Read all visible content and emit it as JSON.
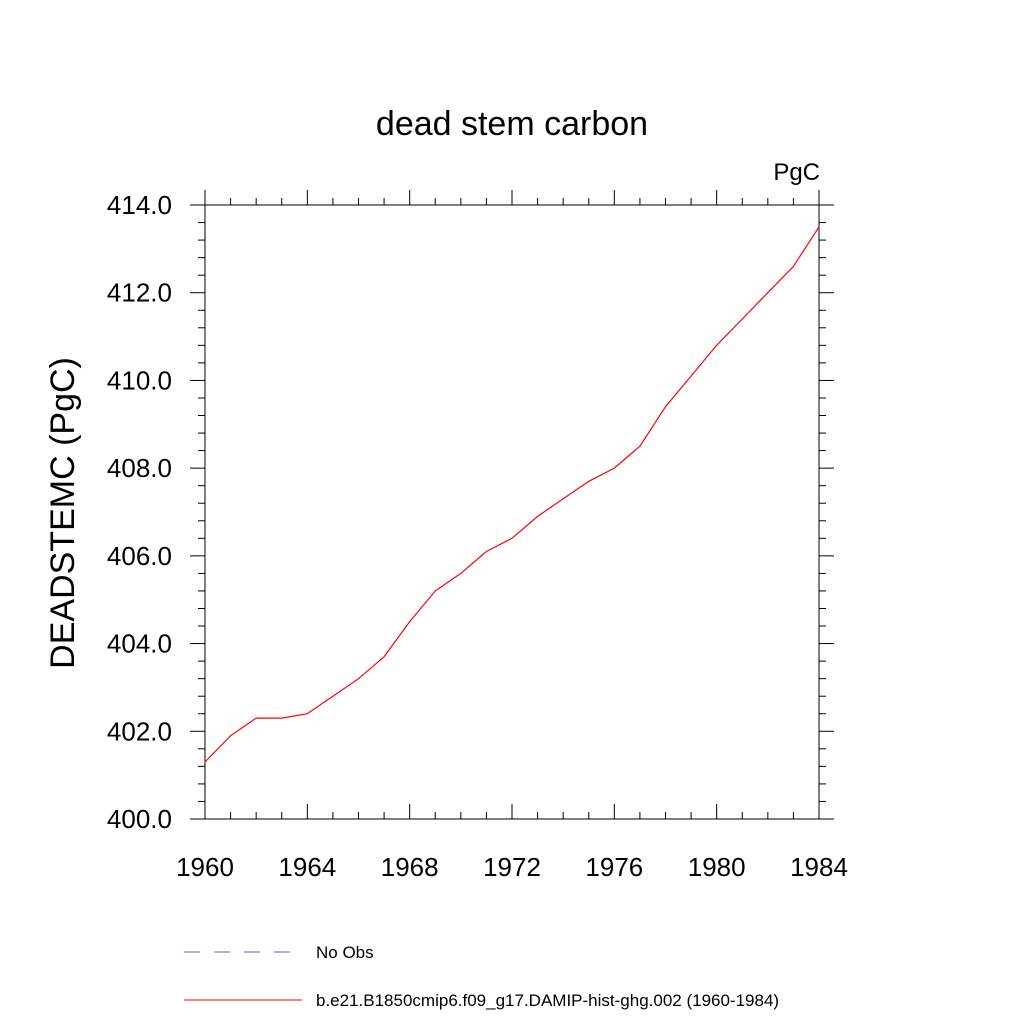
{
  "chart_data": {
    "type": "line",
    "title": "dead stem carbon",
    "units_label": "PgC",
    "ylabel": "DEADSTEMC  (PgC)",
    "xlabel": "",
    "xlim": [
      1960,
      1984
    ],
    "ylim": [
      400.0,
      414.0
    ],
    "x_ticks": [
      "1960",
      "1964",
      "1968",
      "1972",
      "1976",
      "1980",
      "1984"
    ],
    "y_ticks": [
      "400.0",
      "402.0",
      "404.0",
      "406.0",
      "408.0",
      "410.0",
      "412.0",
      "414.0"
    ],
    "series": [
      {
        "name": "b.e21.B1850cmip6.f09_g17.DAMIP-hist-ghg.002 (1960-1984)",
        "color": "#ff0000",
        "style": "solid",
        "x": [
          1960,
          1961,
          1962,
          1963,
          1964,
          1965,
          1966,
          1967,
          1968,
          1969,
          1970,
          1971,
          1972,
          1973,
          1974,
          1975,
          1976,
          1977,
          1978,
          1979,
          1980,
          1981,
          1982,
          1983,
          1984
        ],
        "values": [
          401.3,
          401.9,
          402.3,
          402.3,
          402.4,
          402.8,
          403.2,
          403.7,
          404.5,
          405.2,
          405.6,
          406.1,
          406.4,
          406.9,
          407.3,
          407.7,
          408.0,
          408.5,
          409.4,
          410.1,
          410.8,
          411.4,
          412.0,
          412.6,
          413.5
        ]
      }
    ],
    "legend": {
      "placement": "bottom",
      "entries": [
        {
          "label": "No Obs",
          "color": "#6a5acd",
          "style": "dashed"
        },
        {
          "label": "b.e21.B1850cmip6.f09_g17.DAMIP-hist-ghg.002 (1960-1984)",
          "color": "#ff0000",
          "style": "solid"
        }
      ]
    }
  }
}
